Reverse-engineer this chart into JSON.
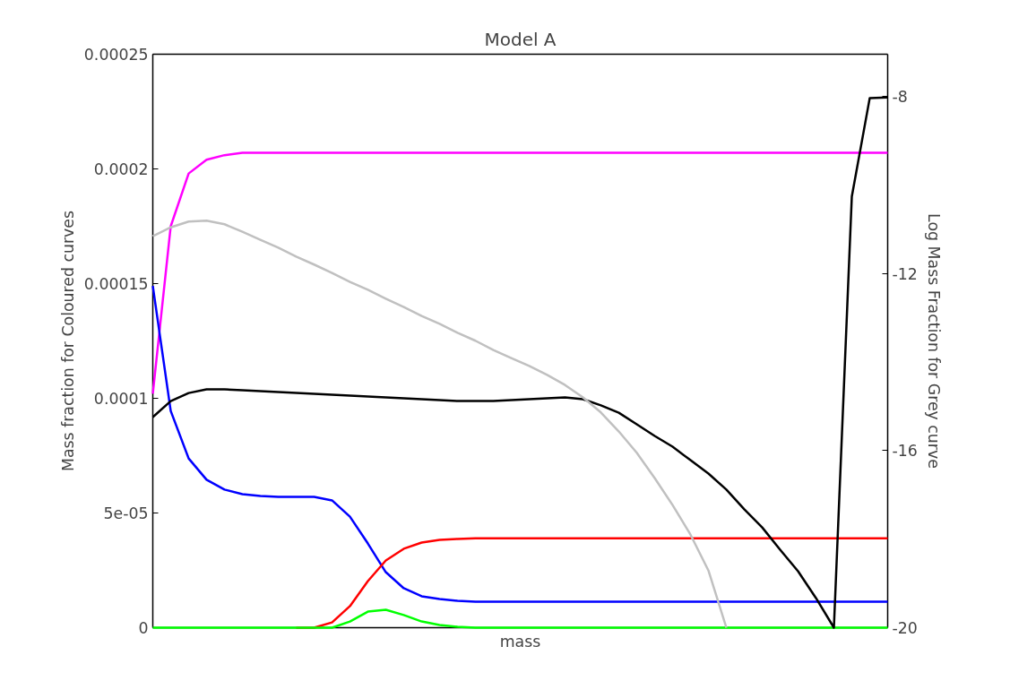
{
  "chart_data": {
    "type": "line",
    "title": "Model A",
    "xlabel": "mass",
    "ylabel": "Mass fraction for Coloured curves",
    "y2label": "Log Mass Fraction for Grey curve",
    "categories": [
      null,
      null,
      null,
      null,
      null,
      null,
      null,
      null,
      null,
      null,
      null,
      null,
      null,
      null,
      null,
      null,
      null,
      null,
      null,
      null,
      null,
      null,
      null,
      null,
      null,
      null,
      null,
      null,
      null,
      null,
      null,
      null,
      null,
      null,
      null,
      null,
      null,
      null,
      null,
      null,
      null,
      null
    ],
    "ylim": [
      0,
      0.00025
    ],
    "y2lim": [
      -20,
      -7.05
    ],
    "yticks": [
      {
        "value": 0,
        "label": "0"
      },
      {
        "value": 5e-05,
        "label": "5e-05"
      },
      {
        "value": 0.0001,
        "label": "0.0001"
      },
      {
        "value": 0.00015,
        "label": "0.00015"
      },
      {
        "value": 0.0002,
        "label": "0.0002"
      },
      {
        "value": 0.00025,
        "label": "0.00025"
      }
    ],
    "y2ticks": [
      {
        "value": -20,
        "label": "-20"
      },
      {
        "value": -16,
        "label": "-16"
      },
      {
        "value": -12,
        "label": "-12"
      },
      {
        "value": -8,
        "label": "-8"
      }
    ],
    "tick_labels": "y",
    "series": [
      {
        "color": "#ff00ff",
        "values": [
          0.000102,
          0.000175,
          0.000198,
          0.000204,
          0.000206,
          0.000207,
          0.000207,
          0.000207,
          0.000207,
          0.000207,
          0.000207,
          0.000207,
          0.000207,
          0.000207,
          0.000207,
          0.000207,
          0.000207,
          0.000207,
          0.000207,
          0.000207,
          0.000207,
          0.000207,
          0.000207,
          0.000207,
          0.000207,
          0.000207,
          0.000207,
          0.000207,
          0.000207,
          0.000207,
          0.000207,
          0.000207,
          0.000207,
          0.000207,
          0.000207,
          0.000207,
          0.000207,
          0.000207,
          0.000207,
          0.000207,
          0.000207,
          0.000207
        ]
      },
      {
        "color": "#0000ff",
        "values": [
          0.000149,
          9.45e-05,
          7.38e-05,
          6.45e-05,
          6.02e-05,
          5.82e-05,
          5.74e-05,
          5.7e-05,
          5.7e-05,
          5.7e-05,
          5.55e-05,
          4.84e-05,
          3.67e-05,
          2.42e-05,
          1.72e-05,
          1.37e-05,
          1.25e-05,
          1.17e-05,
          1.13e-05,
          1.13e-05,
          1.13e-05,
          1.13e-05,
          1.13e-05,
          1.13e-05,
          1.13e-05,
          1.13e-05,
          1.13e-05,
          1.13e-05,
          1.13e-05,
          1.13e-05,
          1.13e-05,
          1.13e-05,
          1.13e-05,
          1.13e-05,
          1.13e-05,
          1.13e-05,
          1.13e-05,
          1.13e-05,
          1.13e-05,
          1.13e-05,
          1.13e-05,
          1.13e-05
        ]
      },
      {
        "color": "#ff0000",
        "values": [
          null,
          null,
          null,
          null,
          null,
          null,
          null,
          null,
          0,
          0,
          2.3e-06,
          9.4e-06,
          2.03e-05,
          2.93e-05,
          3.44e-05,
          3.71e-05,
          3.83e-05,
          3.87e-05,
          3.9e-05,
          3.9e-05,
          3.9e-05,
          3.9e-05,
          3.9e-05,
          3.9e-05,
          3.9e-05,
          3.9e-05,
          3.9e-05,
          3.9e-05,
          3.9e-05,
          3.9e-05,
          3.9e-05,
          3.9e-05,
          3.9e-05,
          3.9e-05,
          3.9e-05,
          3.9e-05,
          3.9e-05,
          3.9e-05,
          3.9e-05,
          3.9e-05,
          3.9e-05,
          3.9e-05
        ]
      },
      {
        "color": "#00ff00",
        "values": [
          0,
          0,
          0,
          0,
          0,
          0,
          0,
          0,
          0,
          0,
          0,
          2.7e-06,
          7e-06,
          7.8e-06,
          5.5e-06,
          2.7e-06,
          1.2e-06,
          4e-07,
          0,
          0,
          0,
          0,
          0,
          0,
          0,
          0,
          0,
          0,
          0,
          0,
          0,
          0,
          0,
          0,
          0,
          0,
          0,
          0,
          0,
          0,
          0,
          0
        ]
      },
      {
        "color": "#000000",
        "values": [
          9.18e-05,
          9.88e-05,
          0.0001023,
          0.0001039,
          0.0001039,
          0.0001035,
          0.0001031,
          0.0001027,
          0.0001023,
          0.000102,
          0.0001016,
          0.0001012,
          0.0001008,
          0.0001004,
          0.0001,
          9.96e-05,
          9.92e-05,
          9.88e-05,
          9.88e-05,
          9.88e-05,
          9.92e-05,
          9.96e-05,
          0.0001,
          0.0001004,
          9.96e-05,
          9.69e-05,
          9.37e-05,
          8.87e-05,
          8.36e-05,
          7.89e-05,
          7.3e-05,
          6.72e-05,
          6.02e-05,
          5.16e-05,
          4.37e-05,
          3.4e-05,
          2.46e-05,
          1.29e-05,
          0,
          0.000188,
          0.0002309,
          0.0002312
        ]
      },
      {
        "color": "#c0c0c0",
        "axis": "y2",
        "values": [
          -11.16,
          -10.96,
          -10.83,
          -10.81,
          -10.89,
          -11.06,
          -11.24,
          -11.42,
          -11.62,
          -11.8,
          -11.99,
          -12.19,
          -12.37,
          -12.57,
          -12.76,
          -12.96,
          -13.14,
          -13.34,
          -13.52,
          -13.73,
          -13.91,
          -14.09,
          -14.29,
          -14.52,
          -14.8,
          -15.14,
          -15.57,
          -16.05,
          -16.62,
          -17.23,
          -17.9,
          -18.71,
          -20,
          null,
          null,
          null,
          null,
          null,
          null,
          null,
          null,
          null
        ]
      }
    ]
  }
}
